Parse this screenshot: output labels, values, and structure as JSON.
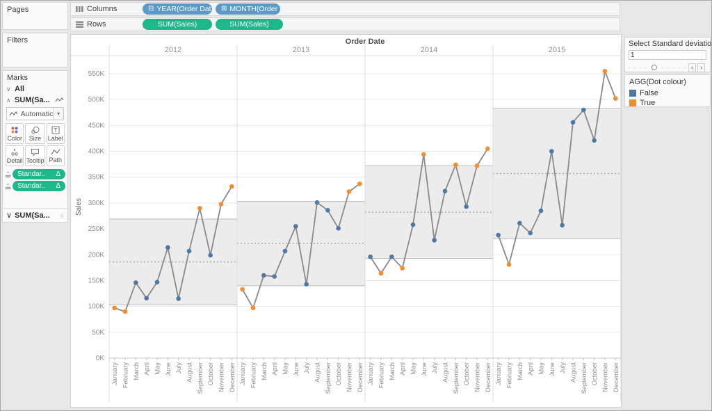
{
  "icons": {
    "minus_box": "⊟",
    "plus_box": "⊞",
    "circle": "○",
    "caret_down": "∨",
    "caret_up": "∧",
    "dropdown_arrow": "▾",
    "slider_left": "‹",
    "slider_right": "›"
  },
  "shelves": {
    "columns": {
      "label": "Columns",
      "pills": [
        {
          "icon": "minus-box-icon",
          "text": "YEAR(Order Dat.."
        },
        {
          "icon": "plus-box-icon",
          "text": "MONTH(Order .."
        }
      ]
    },
    "rows": {
      "label": "Rows",
      "pills": [
        {
          "text": "SUM(Sales)"
        },
        {
          "text": "SUM(Sales)"
        }
      ]
    }
  },
  "sidebar": {
    "pages_label": "Pages",
    "filters_label": "Filters",
    "marks_label": "Marks",
    "marks": {
      "all_label": "All",
      "sum_label": "SUM(Sa...",
      "mark_type": "Automatic",
      "buttons": [
        {
          "label": "Color"
        },
        {
          "label": "Size"
        },
        {
          "label": "Label"
        },
        {
          "label": "Detail"
        },
        {
          "label": "Tooltip"
        },
        {
          "label": "Path"
        }
      ],
      "pills": [
        {
          "text": "Standar..",
          "suffix": "Δ"
        },
        {
          "text": "Standar..",
          "suffix": "Δ"
        }
      ],
      "collapsed_label": "SUM(Sa..."
    }
  },
  "right_panel": {
    "parameter": {
      "title": "Select Standard deviation",
      "value": "1"
    },
    "legend": {
      "title": "AGG(Dot colour)",
      "items": [
        {
          "label": "False",
          "color": "#4e79a7"
        },
        {
          "label": "True",
          "color": "#f28e2b"
        }
      ]
    }
  },
  "chart_data": {
    "type": "line",
    "title": "Order Date",
    "ylabel": "Sales",
    "units": "thousands (K)",
    "ylim": [
      0,
      550
    ],
    "ytick_step": 50,
    "yticks": [
      "0K",
      "50K",
      "100K",
      "150K",
      "200K",
      "250K",
      "300K",
      "350K",
      "400K",
      "450K",
      "500K",
      "550K"
    ],
    "months": [
      "January",
      "February",
      "March",
      "April",
      "May",
      "June",
      "July",
      "August",
      "September",
      "October",
      "November",
      "December"
    ],
    "panels": [
      {
        "year": "2012",
        "values": [
          97,
          90,
          146,
          116,
          147,
          214,
          115,
          207,
          290,
          199,
          298,
          332
        ],
        "dot_true": [
          true,
          true,
          false,
          false,
          false,
          false,
          false,
          false,
          true,
          false,
          true,
          true
        ],
        "band": {
          "lower": 103,
          "mean": 186,
          "upper": 269
        }
      },
      {
        "year": "2013",
        "values": [
          133,
          97,
          160,
          158,
          207,
          255,
          143,
          301,
          286,
          251,
          322,
          337
        ],
        "dot_true": [
          true,
          true,
          false,
          false,
          false,
          false,
          false,
          false,
          false,
          false,
          true,
          true
        ],
        "band": {
          "lower": 140,
          "mean": 222,
          "upper": 303
        }
      },
      {
        "year": "2014",
        "values": [
          196,
          164,
          196,
          174,
          258,
          394,
          228,
          323,
          374,
          293,
          372,
          405
        ],
        "dot_true": [
          false,
          true,
          false,
          true,
          false,
          true,
          false,
          false,
          true,
          false,
          true,
          true
        ],
        "band": {
          "lower": 193,
          "mean": 282,
          "upper": 372
        }
      },
      {
        "year": "2015",
        "values": [
          238,
          181,
          261,
          242,
          285,
          400,
          257,
          456,
          480,
          421,
          555,
          502
        ],
        "dot_true": [
          false,
          true,
          false,
          false,
          false,
          false,
          false,
          false,
          false,
          false,
          true,
          true
        ],
        "band": {
          "lower": 231,
          "mean": 357,
          "upper": 483
        }
      }
    ],
    "colors": {
      "line": "#8a8a8a",
      "dot_false": "#4e79a7",
      "dot_true": "#f28e2b",
      "band_fill": "#ececec",
      "band_edge": "#bbbbbb",
      "mean_line": "#a9a9a9",
      "grid": "#e9e9e9",
      "axis": "#c4c4c4",
      "separator": "#dcdcdc",
      "tick_label": "#8e8e8e",
      "title": "#4c4c4c"
    },
    "legend_position": "right"
  }
}
